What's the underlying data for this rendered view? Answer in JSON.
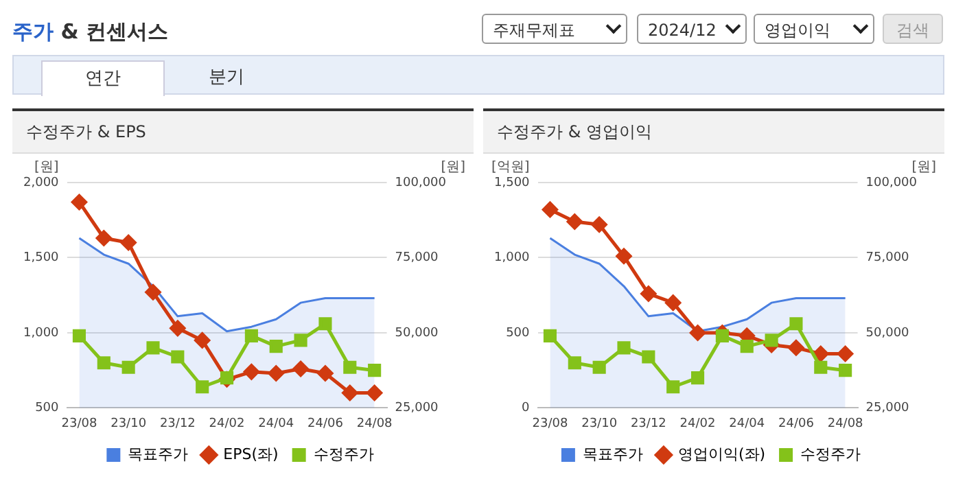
{
  "chart_data": [
    {
      "type": "other",
      "title": "주가 & 컨센서스",
      "annotations": [
        "주재무제표",
        "2024/12",
        "영업이익",
        "검색",
        "연간",
        "분기"
      ]
    },
    {
      "type": "line",
      "title": "수정주가 & EPS",
      "ylabel": "[원]",
      "y2label": "[원]",
      "categories": [
        "23/08",
        null,
        "23/10",
        null,
        "23/12",
        null,
        "24/02",
        null,
        "24/04",
        null,
        "24/06",
        null,
        "24/08"
      ],
      "series": [
        {
          "name": "목표주가",
          "type": "area",
          "axis": "y2",
          "color": "#4a7fe0",
          "marker": "none",
          "values": [
            81500,
            76000,
            73000,
            65500,
            55500,
            56500,
            50500,
            52000,
            54500,
            60000,
            61500,
            61500,
            61500
          ]
        },
        {
          "name": "EPS(좌)",
          "type": "line",
          "color": "#d03a10",
          "marker": "diamond",
          "values": [
            1870,
            1630,
            1600,
            1270,
            1030,
            950,
            690,
            740,
            730,
            760,
            730,
            600,
            600
          ]
        },
        {
          "name": "수정주가",
          "type": "line",
          "axis": "y2",
          "color": "#84c21a",
          "marker": "square",
          "values": [
            49000,
            40000,
            38500,
            45000,
            42000,
            32000,
            35000,
            49000,
            45500,
            47500,
            53000,
            38500,
            37500
          ]
        }
      ],
      "ylim": [
        500,
        2000
      ],
      "yticks": [
        {
          "value": 500,
          "label": "500"
        },
        {
          "value": 1000,
          "label": "1,000"
        },
        {
          "value": 1500,
          "label": "1,500"
        },
        {
          "value": 2000,
          "label": "2,000"
        }
      ],
      "y2lim": [
        25000,
        100000
      ],
      "y2ticks": [
        {
          "value": 25000,
          "label": "25,000"
        },
        {
          "value": 50000,
          "label": "50,000"
        },
        {
          "value": 75000,
          "label": "75,000"
        },
        {
          "value": 100000,
          "label": "100,000"
        }
      ],
      "grid": "y",
      "legend": "bottom"
    },
    {
      "type": "line",
      "title": "수정주가 & 영업이익",
      "ylabel": "[억원]",
      "y2label": "[원]",
      "categories": [
        "23/08",
        null,
        "23/10",
        null,
        "23/12",
        null,
        "24/02",
        null,
        "24/04",
        null,
        "24/06",
        null,
        "24/08"
      ],
      "series": [
        {
          "name": "목표주가",
          "type": "area",
          "axis": "y2",
          "color": "#4a7fe0",
          "marker": "none",
          "values": [
            81500,
            76000,
            73000,
            65500,
            55500,
            56500,
            50500,
            52000,
            54500,
            60000,
            61500,
            61500,
            61500
          ]
        },
        {
          "name": "영업이익(좌)",
          "type": "line",
          "color": "#d03a10",
          "marker": "diamond",
          "values": [
            1320,
            1240,
            1220,
            1010,
            760,
            700,
            500,
            500,
            480,
            420,
            400,
            360,
            360
          ]
        },
        {
          "name": "수정주가",
          "type": "line",
          "axis": "y2",
          "color": "#84c21a",
          "marker": "square",
          "values": [
            49000,
            40000,
            38500,
            45000,
            42000,
            32000,
            35000,
            49000,
            45500,
            47500,
            53000,
            38500,
            37500
          ]
        }
      ],
      "ylim": [
        0,
        1500
      ],
      "yticks": [
        {
          "value": 0,
          "label": "0"
        },
        {
          "value": 500,
          "label": "500"
        },
        {
          "value": 1000,
          "label": "1,000"
        },
        {
          "value": 1500,
          "label": "1,500"
        }
      ],
      "y2lim": [
        25000,
        100000
      ],
      "y2ticks": [
        {
          "value": 25000,
          "label": "25,000"
        },
        {
          "value": 50000,
          "label": "50,000"
        },
        {
          "value": 75000,
          "label": "75,000"
        },
        {
          "value": 100000,
          "label": "100,000"
        }
      ],
      "grid": "y",
      "legend": "bottom"
    }
  ]
}
